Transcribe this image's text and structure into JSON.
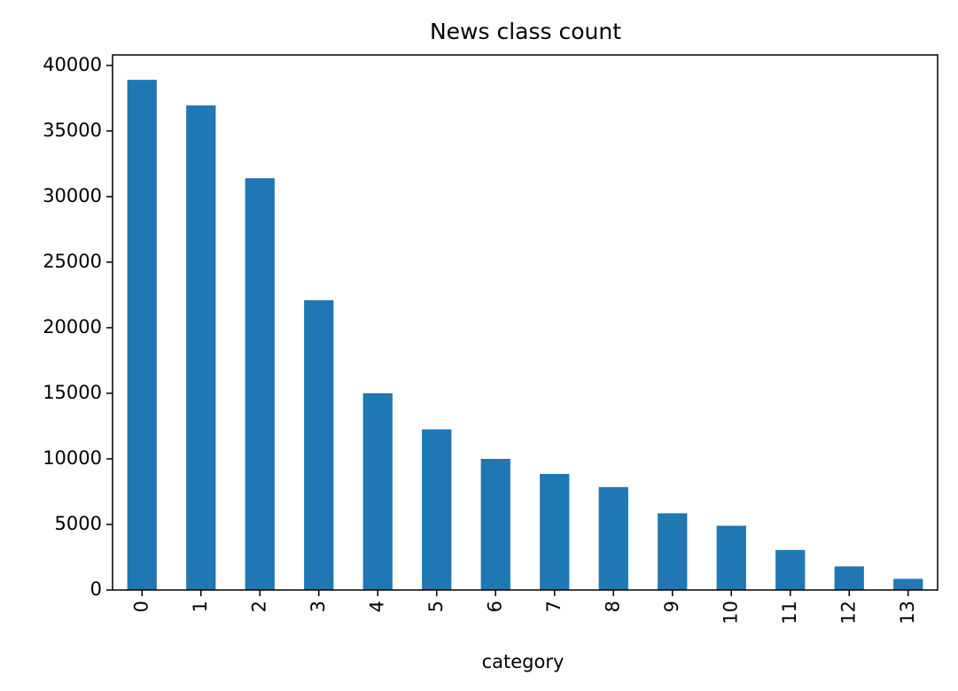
{
  "chart_data": {
    "type": "bar",
    "title": "News class count",
    "xlabel": "category",
    "ylabel": "",
    "categories": [
      "0",
      "1",
      "2",
      "3",
      "4",
      "5",
      "6",
      "7",
      "8",
      "9",
      "10",
      "11",
      "12",
      "13"
    ],
    "values": [
      38900,
      36950,
      31400,
      22100,
      15000,
      12250,
      10000,
      8850,
      7850,
      5850,
      4900,
      3050,
      1800,
      850
    ],
    "yticks": [
      0,
      5000,
      10000,
      15000,
      20000,
      25000,
      30000,
      35000,
      40000
    ],
    "ylim": [
      0,
      40800
    ],
    "bar_color": "#1f77b4",
    "grid": false,
    "legend": false
  }
}
